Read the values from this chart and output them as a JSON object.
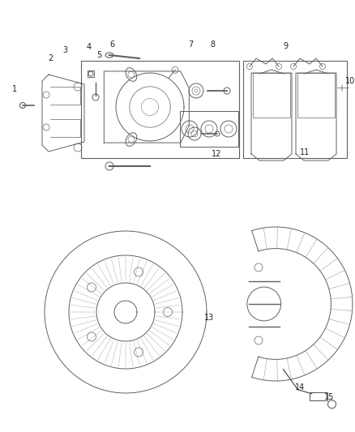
{
  "bg_color": "#ffffff",
  "line_color": "#606060",
  "label_color": "#222222",
  "fig_width": 4.38,
  "fig_height": 5.33,
  "dpi": 100
}
